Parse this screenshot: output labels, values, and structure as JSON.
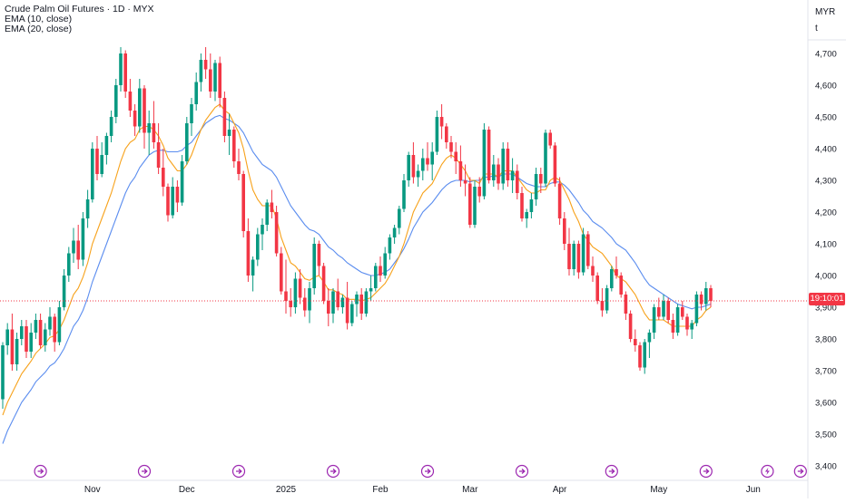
{
  "header": {
    "title": "Crude Palm Oil Futures · 1D · MYX",
    "indicators": [
      "EMA (10, close)",
      "EMA (20, close)"
    ]
  },
  "price_scale": {
    "currency": "MYR",
    "unit": "t",
    "countdown_badge": "19:10:01"
  },
  "colors": {
    "up": "#089981",
    "down": "#f23645",
    "ema10": "#f7a21b",
    "ema20": "#5b8def",
    "current_price_line": "#f23645"
  },
  "chart_data": {
    "type": "candlestick",
    "title": "Crude Palm Oil Futures · 1D · MYX",
    "ylim": [
      3400,
      4750
    ],
    "y_ticks": [
      "3,400",
      "3,500",
      "3,600",
      "3,700",
      "3,800",
      "3,900",
      "4,000",
      "4,100",
      "4,200",
      "4,300",
      "4,400",
      "4,500",
      "4,600",
      "4,700"
    ],
    "x_ticks": [
      {
        "label": "Nov",
        "index": 19
      },
      {
        "label": "Dec",
        "index": 39
      },
      {
        "label": "2025",
        "index": 60
      },
      {
        "label": "Feb",
        "index": 80
      },
      {
        "label": "Mar",
        "index": 99
      },
      {
        "label": "Apr",
        "index": 118
      },
      {
        "label": "May",
        "index": 139
      },
      {
        "label": "Jun",
        "index": 159
      }
    ],
    "event_markers": [
      {
        "index": 8,
        "icon": "dividend-icon"
      },
      {
        "index": 30,
        "icon": "dividend-icon"
      },
      {
        "index": 50,
        "icon": "dividend-icon"
      },
      {
        "index": 70,
        "icon": "dividend-icon"
      },
      {
        "index": 90,
        "icon": "dividend-icon"
      },
      {
        "index": 110,
        "icon": "dividend-icon"
      },
      {
        "index": 129,
        "icon": "dividend-icon"
      },
      {
        "index": 149,
        "icon": "dividend-icon"
      },
      {
        "index": 162,
        "icon": "earnings-icon"
      },
      {
        "index": 169,
        "icon": "dividend-icon"
      }
    ],
    "current_price": 3920,
    "grid": false,
    "series": [
      {
        "name": "EMA (10, close)",
        "kind": "line"
      },
      {
        "name": "EMA (20, close)",
        "kind": "line"
      }
    ],
    "ohlc": [
      [
        3610,
        3790,
        3580,
        3780
      ],
      [
        3780,
        3850,
        3750,
        3830
      ],
      [
        3830,
        3880,
        3700,
        3720
      ],
      [
        3720,
        3820,
        3700,
        3800
      ],
      [
        3800,
        3860,
        3780,
        3840
      ],
      [
        3840,
        3860,
        3740,
        3760
      ],
      [
        3760,
        3850,
        3740,
        3820
      ],
      [
        3820,
        3880,
        3800,
        3860
      ],
      [
        3860,
        3880,
        3770,
        3780
      ],
      [
        3780,
        3850,
        3760,
        3830
      ],
      [
        3830,
        3900,
        3810,
        3870
      ],
      [
        3870,
        3880,
        3760,
        3790
      ],
      [
        3790,
        3920,
        3780,
        3900
      ],
      [
        3900,
        4020,
        3890,
        4000
      ],
      [
        4000,
        4090,
        3980,
        4070
      ],
      [
        4070,
        4150,
        4040,
        4110
      ],
      [
        4110,
        4160,
        4020,
        4050
      ],
      [
        4050,
        4200,
        4030,
        4180
      ],
      [
        4180,
        4270,
        4150,
        4240
      ],
      [
        4240,
        4420,
        4230,
        4400
      ],
      [
        4400,
        4440,
        4300,
        4320
      ],
      [
        4320,
        4420,
        4310,
        4380
      ],
      [
        4380,
        4450,
        4350,
        4440
      ],
      [
        4440,
        4520,
        4420,
        4500
      ],
      [
        4500,
        4620,
        4480,
        4600
      ],
      [
        4600,
        4720,
        4580,
        4700
      ],
      [
        4700,
        4710,
        4560,
        4580
      ],
      [
        4580,
        4620,
        4500,
        4520
      ],
      [
        4520,
        4540,
        4440,
        4470
      ],
      [
        4470,
        4620,
        4450,
        4590
      ],
      [
        4590,
        4600,
        4400,
        4450
      ],
      [
        4450,
        4520,
        4380,
        4480
      ],
      [
        4480,
        4550,
        4400,
        4420
      ],
      [
        4420,
        4480,
        4320,
        4340
      ],
      [
        4340,
        4400,
        4250,
        4280
      ],
      [
        4280,
        4290,
        4170,
        4190
      ],
      [
        4190,
        4310,
        4180,
        4280
      ],
      [
        4280,
        4300,
        4200,
        4230
      ],
      [
        4230,
        4380,
        4220,
        4360
      ],
      [
        4360,
        4500,
        4350,
        4480
      ],
      [
        4480,
        4560,
        4440,
        4540
      ],
      [
        4540,
        4640,
        4520,
        4610
      ],
      [
        4610,
        4700,
        4580,
        4680
      ],
      [
        4680,
        4720,
        4620,
        4650
      ],
      [
        4650,
        4700,
        4560,
        4580
      ],
      [
        4580,
        4680,
        4550,
        4670
      ],
      [
        4670,
        4690,
        4530,
        4560
      ],
      [
        4560,
        4580,
        4420,
        4440
      ],
      [
        4440,
        4510,
        4380,
        4460
      ],
      [
        4460,
        4470,
        4340,
        4360
      ],
      [
        4360,
        4400,
        4300,
        4320
      ],
      [
        4320,
        4330,
        4120,
        4140
      ],
      [
        4140,
        4180,
        3980,
        4000
      ],
      [
        4000,
        4060,
        3950,
        4050
      ],
      [
        4050,
        4150,
        4030,
        4130
      ],
      [
        4130,
        4180,
        4080,
        4160
      ],
      [
        4160,
        4240,
        4140,
        4230
      ],
      [
        4230,
        4270,
        4180,
        4200
      ],
      [
        4200,
        4220,
        4060,
        4070
      ],
      [
        4070,
        4090,
        3940,
        3950
      ],
      [
        3950,
        4050,
        3880,
        3920
      ],
      [
        3920,
        3960,
        3870,
        3900
      ],
      [
        3900,
        4010,
        3880,
        3990
      ],
      [
        3990,
        4020,
        3910,
        3930
      ],
      [
        3930,
        3960,
        3870,
        3890
      ],
      [
        3890,
        3980,
        3850,
        3960
      ],
      [
        3960,
        4120,
        3940,
        4100
      ],
      [
        4100,
        4110,
        4000,
        4030
      ],
      [
        4030,
        4040,
        3910,
        3920
      ],
      [
        3920,
        3960,
        3840,
        3880
      ],
      [
        3880,
        3960,
        3850,
        3950
      ],
      [
        3950,
        3990,
        3890,
        3900
      ],
      [
        3900,
        3940,
        3880,
        3930
      ],
      [
        3930,
        3980,
        3830,
        3850
      ],
      [
        3850,
        3920,
        3840,
        3910
      ],
      [
        3910,
        3950,
        3870,
        3940
      ],
      [
        3940,
        3960,
        3860,
        3880
      ],
      [
        3880,
        3960,
        3870,
        3950
      ],
      [
        3950,
        4000,
        3920,
        3960
      ],
      [
        3960,
        4040,
        3950,
        4030
      ],
      [
        4030,
        4060,
        3980,
        4000
      ],
      [
        4000,
        4090,
        3990,
        4070
      ],
      [
        4070,
        4130,
        4050,
        4120
      ],
      [
        4120,
        4160,
        4100,
        4150
      ],
      [
        4150,
        4220,
        4130,
        4210
      ],
      [
        4210,
        4320,
        4200,
        4300
      ],
      [
        4300,
        4390,
        4280,
        4380
      ],
      [
        4380,
        4420,
        4290,
        4310
      ],
      [
        4310,
        4350,
        4280,
        4330
      ],
      [
        4330,
        4400,
        4300,
        4370
      ],
      [
        4370,
        4420,
        4330,
        4350
      ],
      [
        4350,
        4420,
        4300,
        4390
      ],
      [
        4390,
        4520,
        4380,
        4500
      ],
      [
        4500,
        4540,
        4430,
        4470
      ],
      [
        4470,
        4480,
        4400,
        4420
      ],
      [
        4420,
        4440,
        4370,
        4390
      ],
      [
        4390,
        4420,
        4320,
        4360
      ],
      [
        4360,
        4410,
        4280,
        4300
      ],
      [
        4300,
        4350,
        4250,
        4290
      ],
      [
        4290,
        4310,
        4150,
        4160
      ],
      [
        4160,
        4300,
        4150,
        4280
      ],
      [
        4280,
        4310,
        4230,
        4250
      ],
      [
        4250,
        4480,
        4240,
        4460
      ],
      [
        4460,
        4470,
        4290,
        4300
      ],
      [
        4300,
        4380,
        4280,
        4350
      ],
      [
        4350,
        4370,
        4270,
        4290
      ],
      [
        4290,
        4420,
        4270,
        4400
      ],
      [
        4400,
        4420,
        4280,
        4300
      ],
      [
        4300,
        4370,
        4260,
        4330
      ],
      [
        4330,
        4350,
        4240,
        4260
      ],
      [
        4260,
        4280,
        4170,
        4180
      ],
      [
        4180,
        4210,
        4150,
        4200
      ],
      [
        4200,
        4260,
        4180,
        4240
      ],
      [
        4240,
        4340,
        4220,
        4320
      ],
      [
        4320,
        4340,
        4260,
        4290
      ],
      [
        4290,
        4460,
        4280,
        4450
      ],
      [
        4450,
        4460,
        4400,
        4410
      ],
      [
        4410,
        4420,
        4280,
        4290
      ],
      [
        4290,
        4310,
        4160,
        4180
      ],
      [
        4180,
        4200,
        4080,
        4100
      ],
      [
        4100,
        4150,
        4000,
        4020
      ],
      [
        4020,
        4110,
        4000,
        4100
      ],
      [
        4100,
        4110,
        3990,
        4010
      ],
      [
        4010,
        4150,
        4000,
        4130
      ],
      [
        4130,
        4140,
        4020,
        4030
      ],
      [
        4030,
        4060,
        3980,
        4000
      ],
      [
        4000,
        4010,
        3910,
        3920
      ],
      [
        3920,
        3960,
        3870,
        3890
      ],
      [
        3890,
        3970,
        3880,
        3960
      ],
      [
        3960,
        4030,
        3950,
        4020
      ],
      [
        4020,
        4060,
        3990,
        4000
      ],
      [
        4000,
        4010,
        3930,
        3940
      ],
      [
        3940,
        3950,
        3860,
        3880
      ],
      [
        3880,
        3890,
        3790,
        3800
      ],
      [
        3800,
        3830,
        3760,
        3780
      ],
      [
        3780,
        3790,
        3700,
        3710
      ],
      [
        3710,
        3800,
        3690,
        3790
      ],
      [
        3790,
        3830,
        3740,
        3820
      ],
      [
        3820,
        3910,
        3800,
        3900
      ],
      [
        3900,
        3930,
        3860,
        3870
      ],
      [
        3870,
        3940,
        3860,
        3920
      ],
      [
        3920,
        3930,
        3850,
        3860
      ],
      [
        3860,
        3880,
        3800,
        3820
      ],
      [
        3820,
        3910,
        3810,
        3900
      ],
      [
        3900,
        3920,
        3860,
        3870
      ],
      [
        3870,
        3880,
        3810,
        3830
      ],
      [
        3830,
        3860,
        3800,
        3850
      ],
      [
        3850,
        3950,
        3840,
        3940
      ],
      [
        3940,
        3950,
        3890,
        3910
      ],
      [
        3910,
        3980,
        3890,
        3960
      ],
      [
        3960,
        3970,
        3900,
        3920
      ]
    ],
    "ema10": [
      3560,
      3600,
      3630,
      3660,
      3690,
      3710,
      3730,
      3755,
      3770,
      3785,
      3805,
      3810,
      3830,
      3860,
      3900,
      3940,
      3960,
      3995,
      4040,
      4100,
      4140,
      4180,
      4220,
      4260,
      4310,
      4360,
      4400,
      4420,
      4430,
      4460,
      4470,
      4470,
      4460,
      4440,
      4410,
      4370,
      4350,
      4330,
      4330,
      4350,
      4380,
      4420,
      4460,
      4490,
      4510,
      4530,
      4540,
      4520,
      4510,
      4480,
      4450,
      4400,
      4330,
      4270,
      4240,
      4220,
      4220,
      4220,
      4180,
      4120,
      4080,
      4040,
      4030,
      4010,
      3990,
      3985,
      3995,
      4000,
      3980,
      3955,
      3955,
      3945,
      3940,
      3925,
      3925,
      3925,
      3920,
      3925,
      3930,
      3945,
      3960,
      3975,
      4000,
      4030,
      4060,
      4100,
      4150,
      4200,
      4230,
      4260,
      4275,
      4290,
      4320,
      4350,
      4370,
      4380,
      4370,
      4350,
      4330,
      4300,
      4300,
      4290,
      4320,
      4320,
      4320,
      4310,
      4330,
      4330,
      4330,
      4310,
      4290,
      4270,
      4260,
      4260,
      4270,
      4270,
      4300,
      4310,
      4300,
      4270,
      4240,
      4200,
      4170,
      4130,
      4110,
      4090,
      4080,
      4070,
      4050,
      4030,
      4000,
      3990,
      3980,
      3960,
      3940,
      3910,
      3880,
      3860,
      3860,
      3860,
      3860,
      3850,
      3840,
      3840,
      3840,
      3840,
      3840,
      3860,
      3870,
      3890,
      3900
    ],
    "ema20": [
      3470,
      3510,
      3540,
      3570,
      3600,
      3620,
      3640,
      3665,
      3680,
      3695,
      3715,
      3725,
      3745,
      3770,
      3805,
      3840,
      3860,
      3890,
      3930,
      3980,
      4020,
      4060,
      4100,
      4140,
      4180,
      4220,
      4260,
      4290,
      4310,
      4340,
      4360,
      4380,
      4390,
      4395,
      4395,
      4390,
      4390,
      4390,
      4395,
      4410,
      4420,
      4440,
      4460,
      4480,
      4490,
      4500,
      4505,
      4495,
      4490,
      4480,
      4470,
      4450,
      4420,
      4390,
      4370,
      4350,
      4340,
      4330,
      4310,
      4280,
      4250,
      4220,
      4200,
      4180,
      4160,
      4145,
      4140,
      4130,
      4110,
      4090,
      4080,
      4065,
      4055,
      4040,
      4030,
      4020,
      4010,
      4005,
      4000,
      4000,
      4005,
      4010,
      4020,
      4040,
      4060,
      4085,
      4115,
      4150,
      4175,
      4200,
      4215,
      4230,
      4250,
      4270,
      4285,
      4295,
      4300,
      4300,
      4300,
      4295,
      4300,
      4300,
      4310,
      4310,
      4315,
      4310,
      4320,
      4320,
      4320,
      4310,
      4300,
      4290,
      4285,
      4280,
      4280,
      4280,
      4290,
      4295,
      4295,
      4285,
      4270,
      4250,
      4230,
      4205,
      4190,
      4170,
      4160,
      4150,
      4135,
      4120,
      4100,
      4090,
      4080,
      4060,
      4040,
      4015,
      3990,
      3970,
      3960,
      3950,
      3940,
      3930,
      3920,
      3910,
      3905,
      3900,
      3895,
      3900,
      3900,
      3905,
      3910
    ]
  }
}
